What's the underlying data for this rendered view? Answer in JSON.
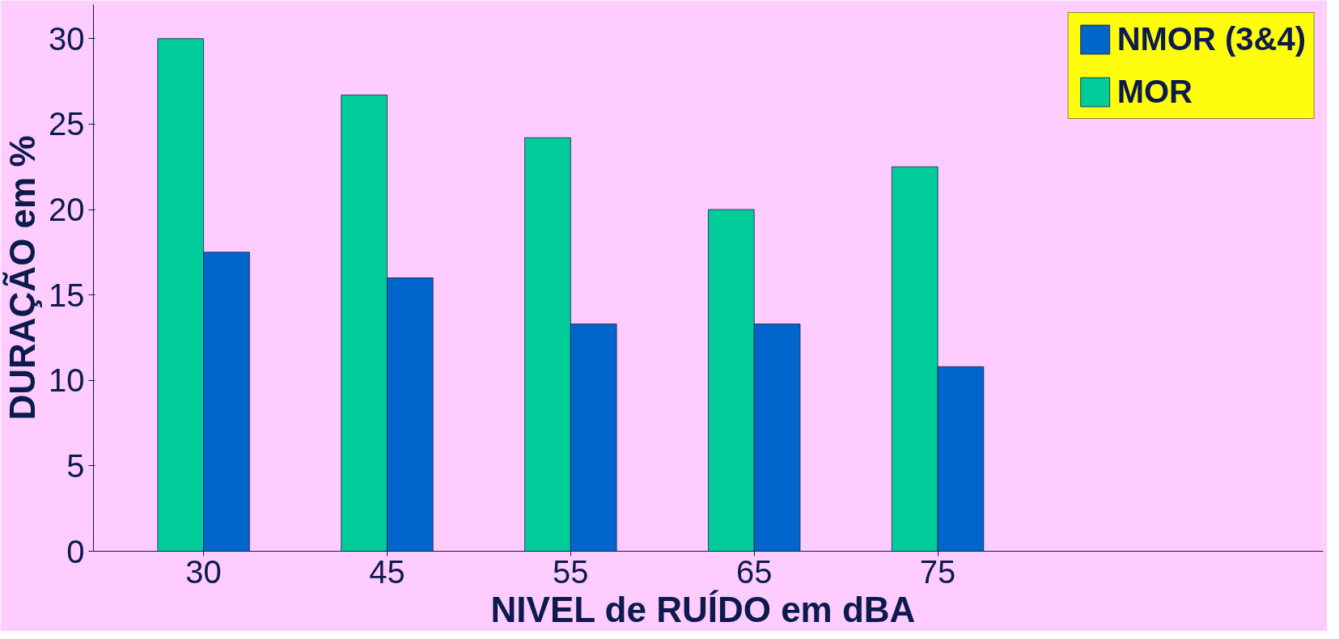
{
  "chart_data": {
    "type": "bar",
    "xlabel": "NIVEL de RUÍDO em  dBA",
    "ylabel": "DURAÇÃO em %",
    "categories": [
      "30",
      "45",
      "55",
      "65",
      "75"
    ],
    "series": [
      {
        "name": "MOR",
        "color": "#00cc99",
        "values": [
          30,
          26.7,
          24.2,
          20,
          22.5
        ]
      },
      {
        "name": "NMOR (3&4)",
        "color": "#0066cc",
        "values": [
          17.5,
          16,
          13.3,
          13.3,
          10.8
        ]
      }
    ],
    "ylim": [
      0,
      32
    ],
    "yticks": [
      0,
      5,
      10,
      15,
      20,
      25,
      30
    ],
    "grid": false,
    "legend": "top right"
  }
}
